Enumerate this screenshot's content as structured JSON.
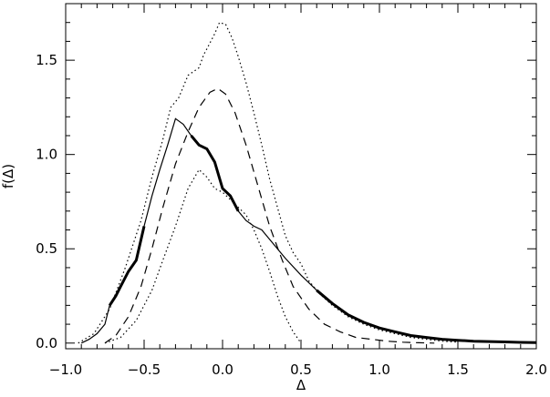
{
  "chart_data": {
    "type": "line",
    "title": "",
    "xlabel": "Δ",
    "ylabel": "f(Δ)",
    "xlim": [
      -1.0,
      2.0
    ],
    "ylim": [
      -0.03,
      1.8
    ],
    "xticks": [
      -1.0,
      -0.5,
      0.0,
      0.5,
      1.0,
      1.5,
      2.0
    ],
    "xtick_labels": [
      "−1.0",
      "−0.5",
      "0.0",
      "0.5",
      "1.0",
      "1.5",
      "2.0"
    ],
    "yticks": [
      0.0,
      0.5,
      1.0,
      1.5
    ],
    "ytick_labels": [
      "0.0",
      "0.5",
      "1.0",
      "1.5"
    ],
    "grid": false,
    "legend": "none",
    "series": [
      {
        "style": "dotted",
        "color": "#000000",
        "x": [
          -0.92,
          -0.82,
          -0.72,
          -0.62,
          -0.52,
          -0.45,
          -0.38,
          -0.33,
          -0.28,
          -0.22,
          -0.15,
          -0.12,
          -0.1,
          -0.05,
          -0.02,
          0.02,
          0.06,
          0.1,
          0.15,
          0.2,
          0.25,
          0.3,
          0.35,
          0.4,
          0.45,
          0.5,
          0.55,
          0.62,
          0.7,
          0.8,
          0.9,
          1.0,
          1.1,
          1.2,
          1.3,
          1.4,
          1.5
        ],
        "y": [
          0.0,
          0.05,
          0.18,
          0.4,
          0.65,
          0.88,
          1.08,
          1.25,
          1.3,
          1.42,
          1.46,
          1.53,
          1.56,
          1.64,
          1.7,
          1.69,
          1.62,
          1.52,
          1.38,
          1.22,
          1.05,
          0.87,
          0.72,
          0.57,
          0.48,
          0.42,
          0.33,
          0.26,
          0.2,
          0.14,
          0.1,
          0.07,
          0.05,
          0.03,
          0.02,
          0.01,
          0.005
        ]
      },
      {
        "style": "dotted",
        "color": "#000000",
        "x": [
          -0.75,
          -0.65,
          -0.55,
          -0.45,
          -0.38,
          -0.3,
          -0.22,
          -0.15,
          -0.1,
          -0.05,
          0.0,
          0.05,
          0.1,
          0.15,
          0.2,
          0.25,
          0.3,
          0.35,
          0.4,
          0.45,
          0.5
        ],
        "y": [
          0.0,
          0.03,
          0.12,
          0.28,
          0.44,
          0.62,
          0.82,
          0.92,
          0.88,
          0.82,
          0.8,
          0.76,
          0.72,
          0.68,
          0.6,
          0.5,
          0.38,
          0.25,
          0.14,
          0.06,
          0.0
        ]
      },
      {
        "style": "dashed",
        "color": "#000000",
        "x": [
          -0.75,
          -0.68,
          -0.6,
          -0.52,
          -0.45,
          -0.38,
          -0.3,
          -0.22,
          -0.15,
          -0.08,
          -0.03,
          0.02,
          0.08,
          0.15,
          0.22,
          0.3,
          0.38,
          0.45,
          0.55,
          0.65,
          0.75,
          0.85,
          0.95,
          1.05,
          1.15,
          1.25,
          1.35
        ],
        "y": [
          0.0,
          0.04,
          0.14,
          0.3,
          0.5,
          0.72,
          0.95,
          1.12,
          1.25,
          1.33,
          1.35,
          1.32,
          1.22,
          1.05,
          0.85,
          0.62,
          0.44,
          0.3,
          0.18,
          0.1,
          0.06,
          0.03,
          0.02,
          0.01,
          0.005,
          0.002,
          0.0
        ]
      },
      {
        "style": "solid",
        "color": "#000000",
        "x": [
          -0.9,
          -0.85,
          -0.8,
          -0.75,
          -0.72,
          -0.68,
          -0.65,
          -0.6,
          -0.55,
          -0.5,
          -0.45,
          -0.4,
          -0.35,
          -0.3,
          -0.25,
          -0.2,
          -0.15,
          -0.1,
          -0.05,
          0.0,
          0.05,
          0.1,
          0.15,
          0.2,
          0.25,
          0.3,
          0.35,
          0.4,
          0.5,
          0.6,
          0.7,
          0.8,
          0.9,
          1.0,
          1.1,
          1.2,
          1.3,
          1.4,
          1.5,
          1.6,
          1.7,
          1.8,
          1.9,
          2.0
        ],
        "y": [
          0.0,
          0.02,
          0.05,
          0.1,
          0.2,
          0.25,
          0.3,
          0.38,
          0.44,
          0.62,
          0.78,
          0.92,
          1.05,
          1.19,
          1.16,
          1.1,
          1.05,
          1.03,
          0.96,
          0.82,
          0.78,
          0.7,
          0.65,
          0.62,
          0.6,
          0.55,
          0.5,
          0.45,
          0.36,
          0.28,
          0.21,
          0.15,
          0.11,
          0.08,
          0.06,
          0.04,
          0.03,
          0.02,
          0.015,
          0.01,
          0.008,
          0.006,
          0.004,
          0.003
        ]
      }
    ]
  }
}
